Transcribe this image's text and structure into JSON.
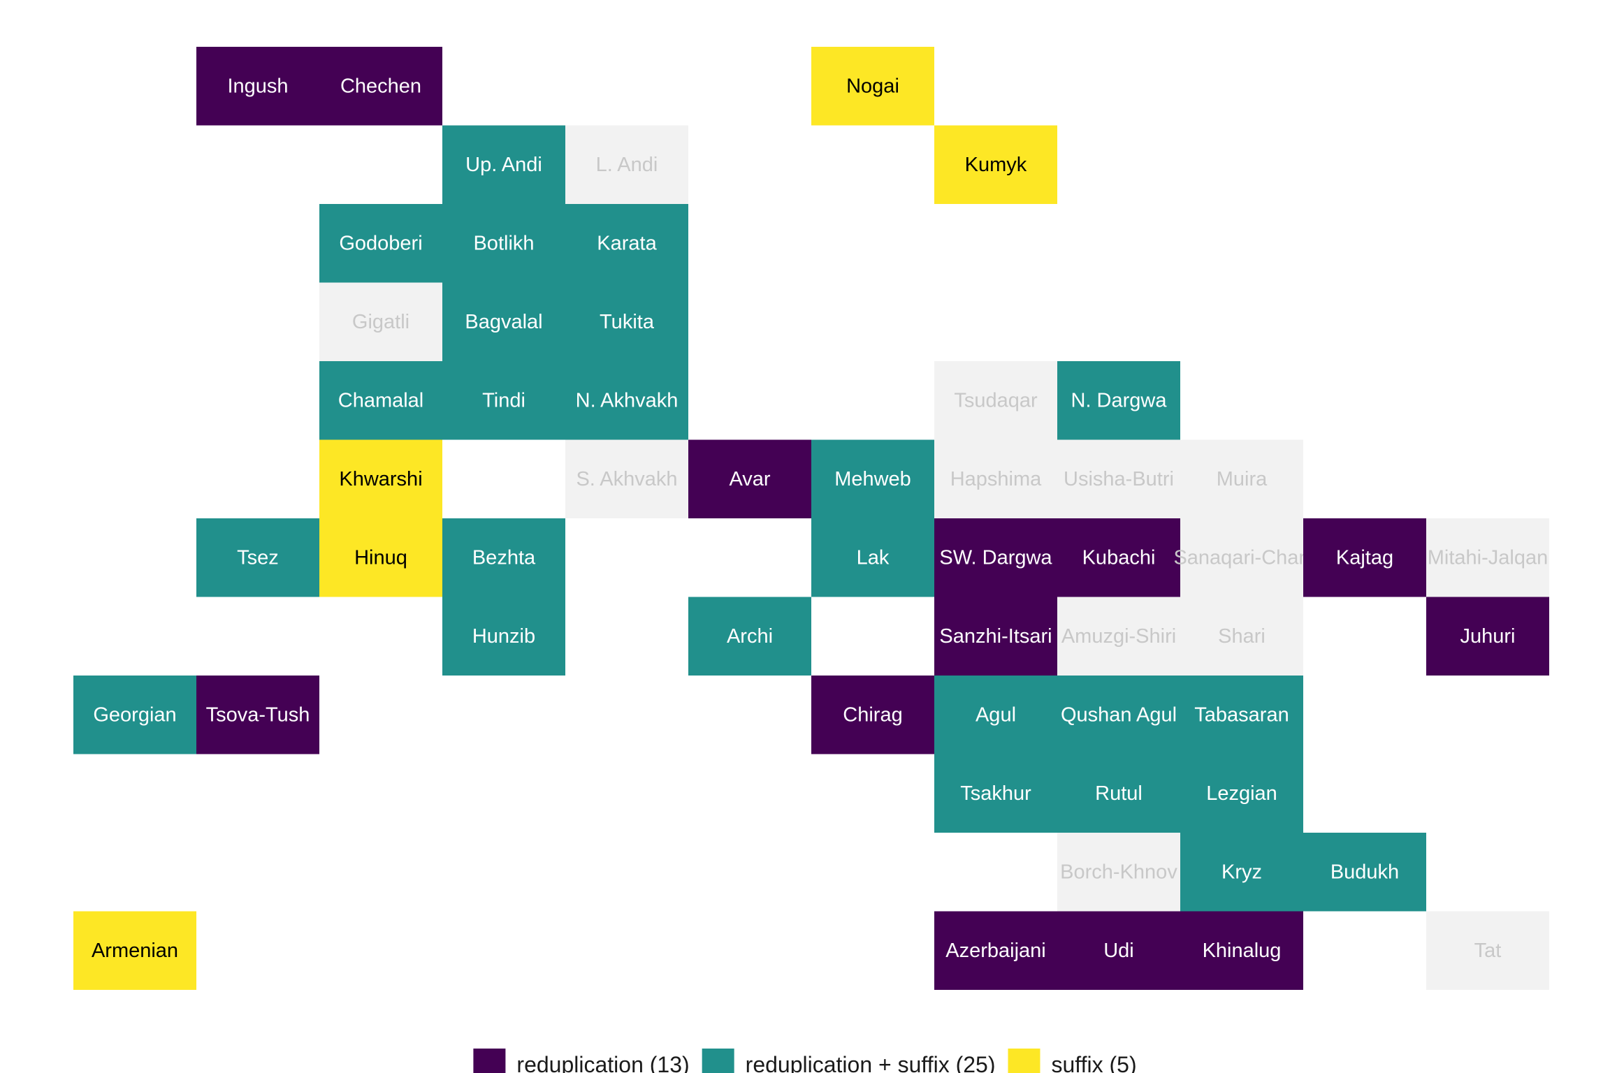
{
  "chart_data": {
    "type": "heatmap",
    "title": "",
    "xlabel": "",
    "ylabel": "",
    "grid": false,
    "legend_position": "bottom",
    "category_colors": {
      "reduplication": "#440154",
      "reduplication + suffix": "#21908C",
      "suffix": "#FDE725",
      "no data": "#F2F2F2"
    },
    "text_colors": {
      "reduplication": "#FFFFFF",
      "reduplication + suffix": "#FFFFFF",
      "suffix": "#000000",
      "no data": "#C8C8C8"
    },
    "legend": [
      {
        "category": "reduplication",
        "label": "reduplication (13)"
      },
      {
        "category": "reduplication + suffix",
        "label": "reduplication + suffix (25)"
      },
      {
        "category": "suffix",
        "label": "suffix (5)"
      }
    ],
    "tiles": [
      {
        "label": "Ingush",
        "col": 2,
        "row": 1,
        "category": "reduplication"
      },
      {
        "label": "Chechen",
        "col": 3,
        "row": 1,
        "category": "reduplication"
      },
      {
        "label": "Nogai",
        "col": 7,
        "row": 1,
        "category": "suffix"
      },
      {
        "label": "Up. Andi",
        "col": 4,
        "row": 2,
        "category": "reduplication + suffix"
      },
      {
        "label": "L. Andi",
        "col": 5,
        "row": 2,
        "category": "no data"
      },
      {
        "label": "Kumyk",
        "col": 8,
        "row": 2,
        "category": "suffix"
      },
      {
        "label": "Godoberi",
        "col": 3,
        "row": 3,
        "category": "reduplication + suffix"
      },
      {
        "label": "Botlikh",
        "col": 4,
        "row": 3,
        "category": "reduplication + suffix"
      },
      {
        "label": "Karata",
        "col": 5,
        "row": 3,
        "category": "reduplication + suffix"
      },
      {
        "label": "Gigatli",
        "col": 3,
        "row": 4,
        "category": "no data"
      },
      {
        "label": "Bagvalal",
        "col": 4,
        "row": 4,
        "category": "reduplication + suffix"
      },
      {
        "label": "Tukita",
        "col": 5,
        "row": 4,
        "category": "reduplication + suffix"
      },
      {
        "label": "Chamalal",
        "col": 3,
        "row": 5,
        "category": "reduplication + suffix"
      },
      {
        "label": "Tindi",
        "col": 4,
        "row": 5,
        "category": "reduplication + suffix"
      },
      {
        "label": "N. Akhvakh",
        "col": 5,
        "row": 5,
        "category": "reduplication + suffix"
      },
      {
        "label": "Tsudaqar",
        "col": 8,
        "row": 5,
        "category": "no data"
      },
      {
        "label": "N. Dargwa",
        "col": 9,
        "row": 5,
        "category": "reduplication + suffix"
      },
      {
        "label": "Khwarshi",
        "col": 3,
        "row": 6,
        "category": "suffix"
      },
      {
        "label": "S. Akhvakh",
        "col": 5,
        "row": 6,
        "category": "no data"
      },
      {
        "label": "Avar",
        "col": 6,
        "row": 6,
        "category": "reduplication"
      },
      {
        "label": "Mehweb",
        "col": 7,
        "row": 6,
        "category": "reduplication + suffix"
      },
      {
        "label": "Hapshima",
        "col": 8,
        "row": 6,
        "category": "no data"
      },
      {
        "label": "Usisha-Butri",
        "col": 9,
        "row": 6,
        "category": "no data"
      },
      {
        "label": "Muira",
        "col": 10,
        "row": 6,
        "category": "no data"
      },
      {
        "label": "Tsez",
        "col": 2,
        "row": 7,
        "category": "reduplication + suffix"
      },
      {
        "label": "Hinuq",
        "col": 3,
        "row": 7,
        "category": "suffix"
      },
      {
        "label": "Bezhta",
        "col": 4,
        "row": 7,
        "category": "reduplication + suffix"
      },
      {
        "label": "Lak",
        "col": 7,
        "row": 7,
        "category": "reduplication + suffix"
      },
      {
        "label": "SW. Dargwa",
        "col": 8,
        "row": 7,
        "category": "reduplication"
      },
      {
        "label": "Kubachi",
        "col": 9,
        "row": 7,
        "category": "reduplication"
      },
      {
        "label": "Sanaqari-Chan",
        "col": 10,
        "row": 7,
        "category": "no data"
      },
      {
        "label": "Kajtag",
        "col": 11,
        "row": 7,
        "category": "reduplication"
      },
      {
        "label": "Mitahi-Jalqan",
        "col": 12,
        "row": 7,
        "category": "no data"
      },
      {
        "label": "Hunzib",
        "col": 4,
        "row": 8,
        "category": "reduplication + suffix"
      },
      {
        "label": "Archi",
        "col": 6,
        "row": 8,
        "category": "reduplication + suffix"
      },
      {
        "label": "Sanzhi-Itsari",
        "col": 8,
        "row": 8,
        "category": "reduplication"
      },
      {
        "label": "Amuzgi-Shiri",
        "col": 9,
        "row": 8,
        "category": "no data"
      },
      {
        "label": "Shari",
        "col": 10,
        "row": 8,
        "category": "no data"
      },
      {
        "label": "Juhuri",
        "col": 12,
        "row": 8,
        "category": "reduplication"
      },
      {
        "label": "Georgian",
        "col": 1,
        "row": 9,
        "category": "reduplication + suffix"
      },
      {
        "label": "Tsova-Tush",
        "col": 2,
        "row": 9,
        "category": "reduplication"
      },
      {
        "label": "Chirag",
        "col": 7,
        "row": 9,
        "category": "reduplication"
      },
      {
        "label": "Agul",
        "col": 8,
        "row": 9,
        "category": "reduplication + suffix"
      },
      {
        "label": "Qushan Agul",
        "col": 9,
        "row": 9,
        "category": "reduplication + suffix"
      },
      {
        "label": "Tabasaran",
        "col": 10,
        "row": 9,
        "category": "reduplication + suffix"
      },
      {
        "label": "Tsakhur",
        "col": 8,
        "row": 10,
        "category": "reduplication + suffix"
      },
      {
        "label": "Rutul",
        "col": 9,
        "row": 10,
        "category": "reduplication + suffix"
      },
      {
        "label": "Lezgian",
        "col": 10,
        "row": 10,
        "category": "reduplication + suffix"
      },
      {
        "label": "Borch-Khnov",
        "col": 9,
        "row": 11,
        "category": "no data"
      },
      {
        "label": "Kryz",
        "col": 10,
        "row": 11,
        "category": "reduplication + suffix"
      },
      {
        "label": "Budukh",
        "col": 11,
        "row": 11,
        "category": "reduplication + suffix"
      },
      {
        "label": "Armenian",
        "col": 1,
        "row": 12,
        "category": "suffix"
      },
      {
        "label": "Azerbaijani",
        "col": 8,
        "row": 12,
        "category": "reduplication"
      },
      {
        "label": "Udi",
        "col": 9,
        "row": 12,
        "category": "reduplication"
      },
      {
        "label": "Khinalug",
        "col": 10,
        "row": 12,
        "category": "reduplication"
      },
      {
        "label": "Tat",
        "col": 12,
        "row": 12,
        "category": "no data"
      }
    ]
  }
}
